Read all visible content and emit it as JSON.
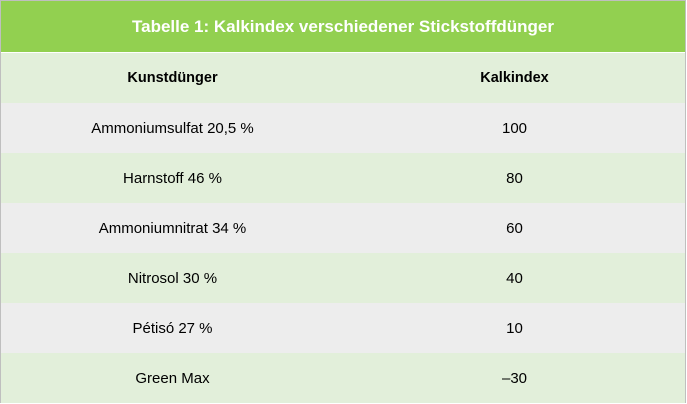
{
  "table": {
    "title": "Tabelle 1: Kalkindex verschiedener Stickstoffdünger",
    "columns": [
      "Kunstdünger",
      "Kalkindex"
    ],
    "rows": [
      {
        "name": "Ammoniumsulfat 20,5 %",
        "value": "100"
      },
      {
        "name": "Harnstoff 46 %",
        "value": "80"
      },
      {
        "name": "Ammoniumnitrat 34 %",
        "value": "60"
      },
      {
        "name": "Nitrosol 30 %",
        "value": "40"
      },
      {
        "name": "Pétisó 27 %",
        "value": "10"
      },
      {
        "name": "Green Max",
        "value": "–30"
      }
    ]
  },
  "colors": {
    "title_bg": "#92d050",
    "title_text": "#ffffff",
    "row_green": "#e2efda",
    "row_gray": "#ededed",
    "border": "#bfbfbf"
  }
}
